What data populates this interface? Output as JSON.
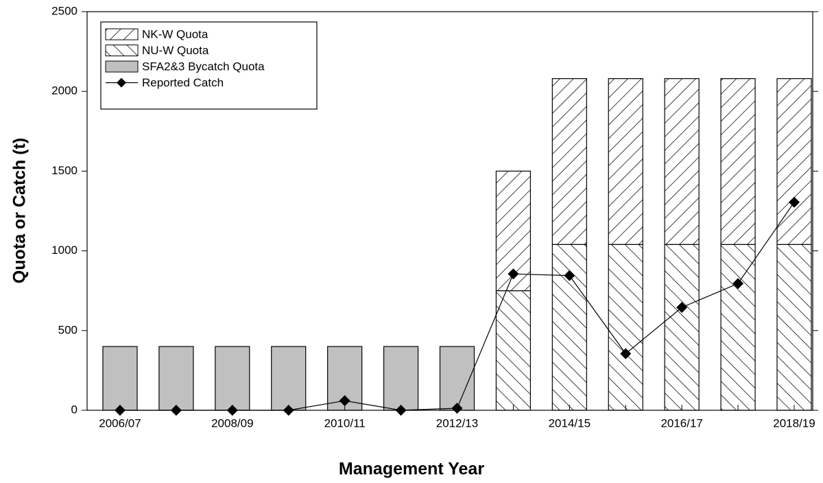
{
  "chart_data": {
    "type": "bar",
    "stacked": true,
    "x_label": "Management Year",
    "y_label": "Quota or Catch (t)",
    "categories": [
      "2006/07",
      null,
      "2008/09",
      null,
      "2010/11",
      null,
      "2012/13",
      null,
      "2014/15",
      null,
      "2016/17",
      null,
      "2018/19"
    ],
    "ylim": [
      0,
      2500
    ],
    "yticks": [
      0,
      500,
      1000,
      1500,
      2000,
      2500
    ],
    "legend": "upper-left",
    "series": [
      {
        "name": "NK-W Quota",
        "type": "bar",
        "hatch": "/",
        "color": "#ffffff",
        "values": [
          null,
          null,
          null,
          null,
          null,
          null,
          null,
          750,
          1040,
          1040,
          1040,
          1040,
          1040
        ]
      },
      {
        "name": "NU-W Quota",
        "type": "bar",
        "hatch": "\\",
        "color": "#ffffff",
        "values": [
          null,
          null,
          null,
          null,
          null,
          null,
          null,
          750,
          1040,
          1040,
          1040,
          1040,
          1040
        ]
      },
      {
        "name": "SFA2&3 Bycatch Quota",
        "type": "bar",
        "color": "#c0c0c0",
        "values": [
          400,
          400,
          400,
          400,
          400,
          400,
          400,
          null,
          null,
          null,
          null,
          null,
          null
        ]
      },
      {
        "name": "Reported Catch",
        "type": "line",
        "marker": "diamond",
        "color": "#000000",
        "values": [
          0,
          0,
          0,
          0,
          60,
          0,
          13,
          855,
          845,
          355,
          645,
          795,
          1305
        ]
      }
    ]
  }
}
